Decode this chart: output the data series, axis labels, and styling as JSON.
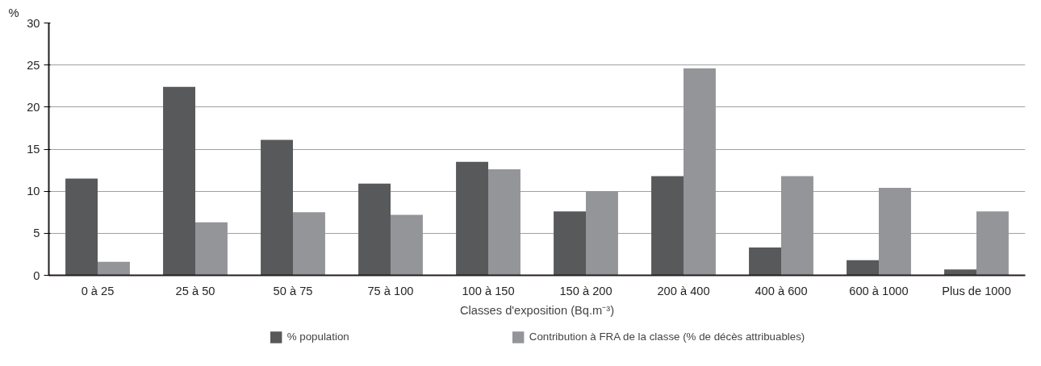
{
  "chart_data": {
    "type": "bar",
    "ylabel": "%",
    "xlabel": "Classes d'exposition (Bq.m⁻³)",
    "categories": [
      "0 à 25",
      "25 à 50",
      "50 à 75",
      "75 à 100",
      "100 à 150",
      "150 à 200",
      "200 à 400",
      "400 à 600",
      "600 à 1000",
      "Plus de 1000"
    ],
    "series": [
      {
        "name": "% population",
        "color": "#58595b",
        "values": [
          11.5,
          22.4,
          16.1,
          10.9,
          13.5,
          7.6,
          11.8,
          3.3,
          1.8,
          0.7
        ]
      },
      {
        "name": "Contribution à FRA de la classe (% de décès attribuables)",
        "color": "#939598",
        "values": [
          1.6,
          6.3,
          7.5,
          7.2,
          12.6,
          10.0,
          24.6,
          11.8,
          10.4,
          7.6
        ]
      }
    ],
    "ylim": [
      0,
      30
    ],
    "yticks": [
      0,
      5,
      10,
      15,
      20,
      25,
      30
    ],
    "grid": "y",
    "legend": "bottom"
  }
}
